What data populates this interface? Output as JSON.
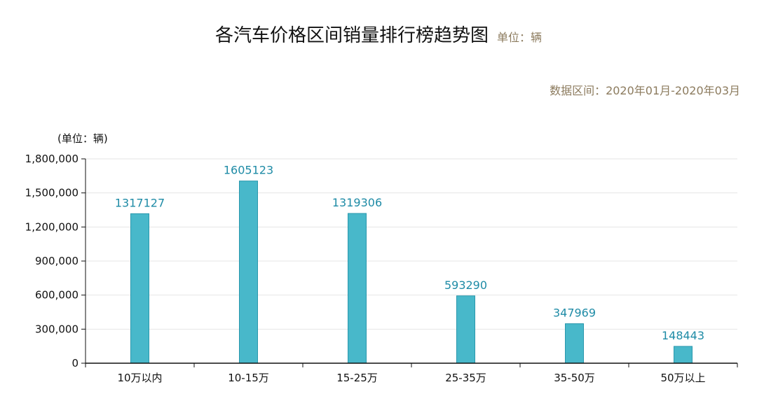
{
  "title": "各汽车价格区间销量排行榜趋势图",
  "subtitle": "单位：辆",
  "data_range": "数据区间：2020年01月-2020年03月",
  "colors": {
    "bar_fill": "#48b8ca",
    "bar_stroke": "#2a98ad",
    "data_label": "#1e8ba6",
    "subtitle": "#8c7b5e",
    "grid": "#e6e6e6",
    "axis": "#111111"
  },
  "chart_data": {
    "type": "bar",
    "title": "各汽车价格区间销量排行榜趋势图",
    "subtitle": "单位：辆",
    "ylabel": "(单位：辆)",
    "xlabel": "",
    "categories": [
      "10万以内",
      "10-15万",
      "15-25万",
      "25-35万",
      "35-50万",
      "50万以上"
    ],
    "values": [
      1317127,
      1605123,
      1319306,
      593290,
      347969,
      148443
    ],
    "ylim": [
      0,
      1800000
    ],
    "yticks": [
      0,
      300000,
      600000,
      900000,
      1200000,
      1500000,
      1800000
    ],
    "ytick_labels": [
      "0",
      "300,000",
      "600,000",
      "900,000",
      "1,200,000",
      "1,500,000",
      "1,800,000"
    ],
    "grid": true,
    "legend": "none"
  }
}
